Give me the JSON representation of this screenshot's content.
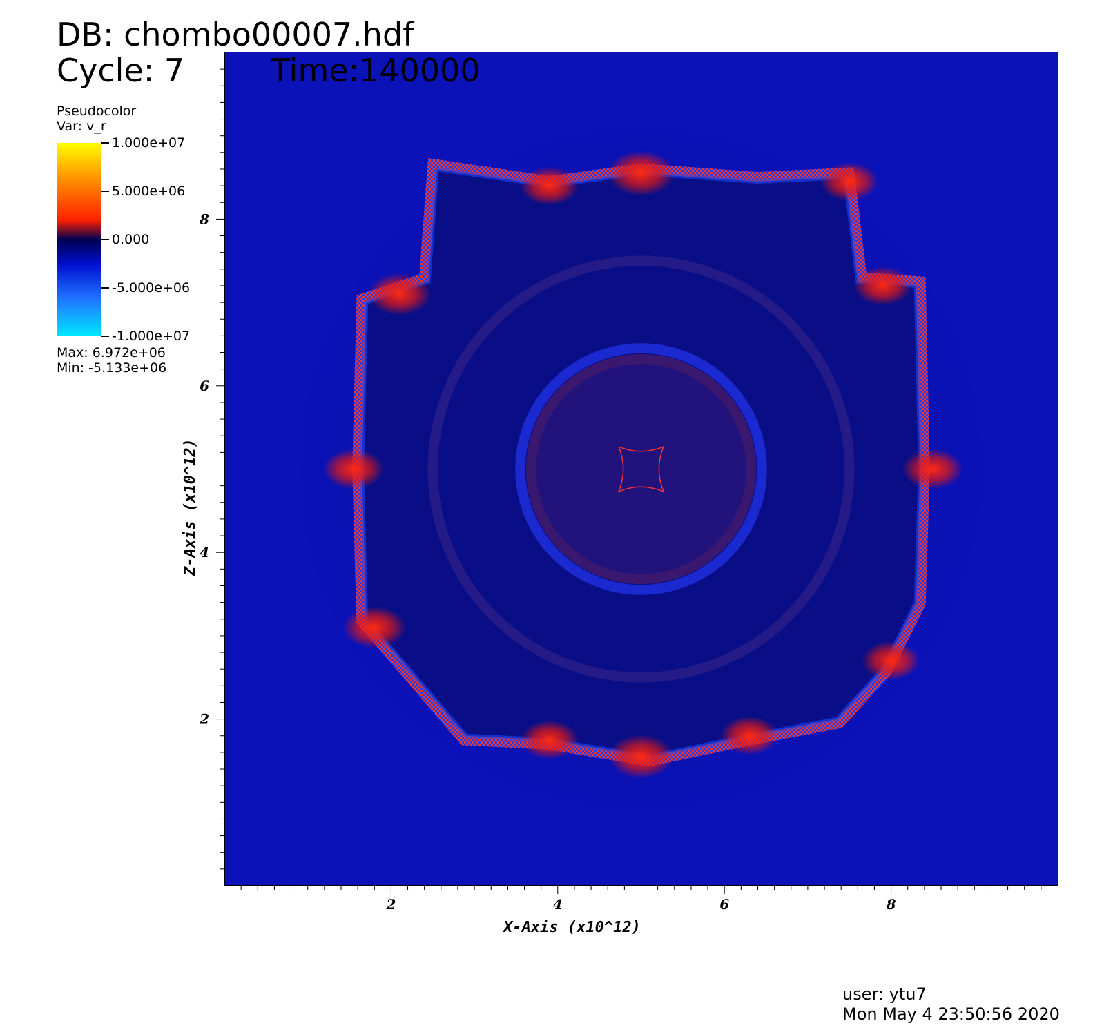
{
  "header": {
    "db": "DB: chombo00007.hdf",
    "cycle": "Cycle: 7",
    "time": "Time:140000"
  },
  "legend": {
    "plot_type": "Pseudocolor",
    "variable": "Var: v_r",
    "ticks": [
      "1.000e+07",
      "5.000e+06",
      "0.000",
      "-5.000e+06",
      "-1.000e+07"
    ],
    "max": "Max:  6.972e+06",
    "min": "Min: -5.133e+06",
    "colormap": [
      "#00e8ff",
      "#2070ff",
      "#0010d0",
      "#000050",
      "#ff2000",
      "#ff9a00",
      "#ffff00"
    ]
  },
  "footer": {
    "user": "user: ytu7",
    "date": "Mon May  4 23:50:56 2020"
  },
  "chart_data": {
    "type": "heatmap",
    "title": "",
    "variable": "v_r",
    "xlabel": "X-Axis (x10^12)",
    "ylabel": "Z-Axis (x10^12)",
    "xlim": [
      0,
      10
    ],
    "ylim": [
      0,
      10
    ],
    "x_ticks": [
      "2",
      "4",
      "6",
      "8"
    ],
    "y_ticks": [
      "2",
      "4",
      "6",
      "8"
    ],
    "colorbar_range": [
      -10000000,
      10000000
    ],
    "data_max": 6972000,
    "data_min": -5133000,
    "background_color": "#0a12b8",
    "center": [
      5,
      5
    ],
    "rings": [
      {
        "r": 1.45,
        "value": -1500000,
        "color": "#1a2ad0"
      },
      {
        "r": 1.32,
        "value": 600000,
        "color": "#3a1870"
      },
      {
        "r": 2.5,
        "value": 300000,
        "color": "#241a88"
      }
    ],
    "shell_outline": [
      [
        2.55,
        8.6
      ],
      [
        3.9,
        8.4
      ],
      [
        5.0,
        8.55
      ],
      [
        6.4,
        8.45
      ],
      [
        7.45,
        8.5
      ],
      [
        7.6,
        7.25
      ],
      [
        8.3,
        7.2
      ],
      [
        8.35,
        5.0
      ],
      [
        8.3,
        3.4
      ],
      [
        7.9,
        2.6
      ],
      [
        7.35,
        2.0
      ],
      [
        6.3,
        1.8
      ],
      [
        5.1,
        1.55
      ],
      [
        3.9,
        1.75
      ],
      [
        2.9,
        1.8
      ],
      [
        2.3,
        2.5
      ],
      [
        1.7,
        3.2
      ],
      [
        1.65,
        5.0
      ],
      [
        1.7,
        7.0
      ],
      [
        2.45,
        7.25
      ]
    ],
    "hot_spots": [
      {
        "x": 5.0,
        "z": 8.55,
        "value": 6972000
      },
      {
        "x": 5.0,
        "z": 1.55,
        "value": 6500000
      },
      {
        "x": 1.55,
        "z": 5.0,
        "value": 5500000
      },
      {
        "x": 8.5,
        "z": 5.0,
        "value": 5500000
      },
      {
        "x": 2.1,
        "z": 7.1,
        "value": 6000000
      },
      {
        "x": 7.9,
        "z": 7.2,
        "value": 5000000
      },
      {
        "x": 1.8,
        "z": 3.1,
        "value": 6000000
      },
      {
        "x": 8.0,
        "z": 2.7,
        "value": 5000000
      },
      {
        "x": 3.9,
        "z": 1.75,
        "value": 5000000
      },
      {
        "x": 6.3,
        "z": 1.8,
        "value": 5000000
      },
      {
        "x": 3.9,
        "z": 8.4,
        "value": 5000000
      },
      {
        "x": 7.5,
        "z": 8.45,
        "value": 5000000
      }
    ]
  }
}
